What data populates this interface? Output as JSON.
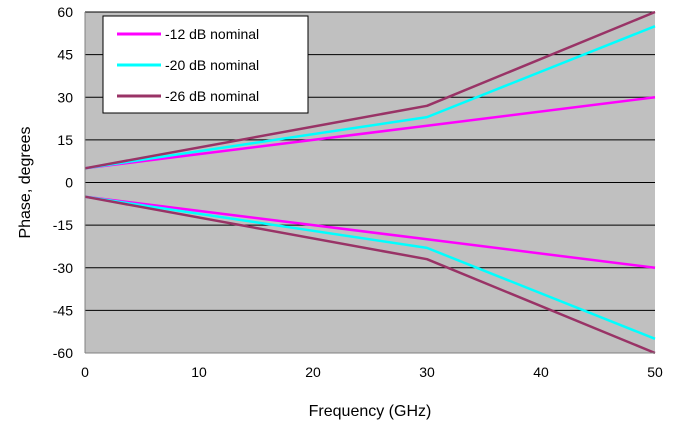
{
  "chart_data": {
    "type": "line",
    "title": "",
    "xlabel": "Frequency (GHz)",
    "ylabel": "Phase, degrees",
    "xlim": [
      0,
      50
    ],
    "ylim": [
      -60,
      60
    ],
    "x_ticks": [
      0,
      10,
      20,
      30,
      40,
      50
    ],
    "y_ticks": [
      -60,
      -45,
      -30,
      -15,
      0,
      15,
      30,
      45,
      60
    ],
    "grid": "horizontal",
    "plot_background": "#c0c0c0",
    "legend_placement": "top-left",
    "series": [
      {
        "name": "-12 dB nominal",
        "color": "#ff00ff",
        "upper": {
          "x": [
            0,
            30,
            50
          ],
          "y": [
            5,
            20,
            30
          ]
        },
        "lower": {
          "x": [
            0,
            30,
            50
          ],
          "y": [
            -5,
            -20,
            -30
          ]
        }
      },
      {
        "name": "-20 dB nominal",
        "color": "#00ffff",
        "upper": {
          "x": [
            0,
            30,
            50
          ],
          "y": [
            5,
            23,
            55
          ]
        },
        "lower": {
          "x": [
            0,
            30,
            50
          ],
          "y": [
            -5,
            -23,
            -55
          ]
        }
      },
      {
        "name": "-26 dB nominal",
        "color": "#993366",
        "upper": {
          "x": [
            0,
            30,
            50
          ],
          "y": [
            5,
            27,
            60
          ]
        },
        "lower": {
          "x": [
            0,
            30,
            50
          ],
          "y": [
            -5,
            -27,
            -60
          ]
        }
      }
    ]
  }
}
